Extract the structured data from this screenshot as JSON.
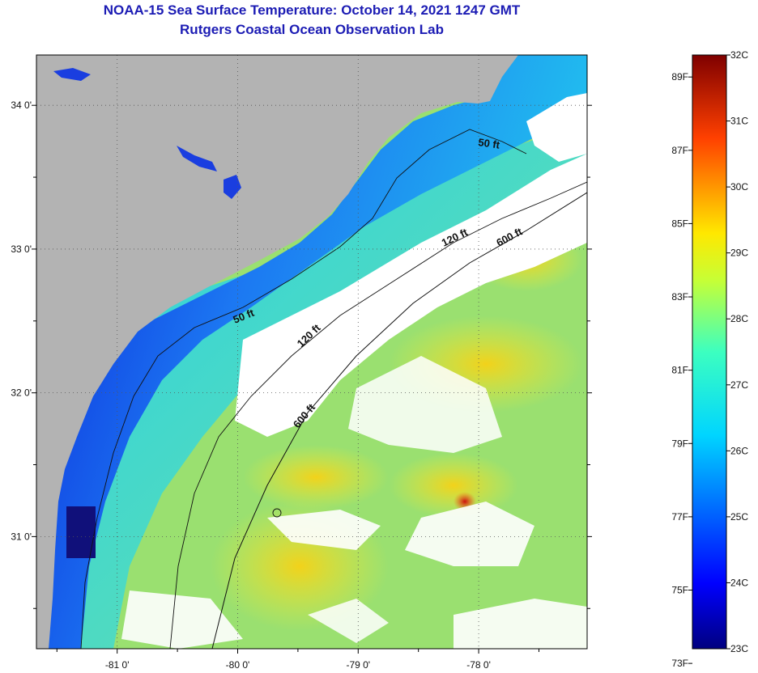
{
  "header": {
    "title": "NOAA-15 Sea Surface Temperature:  October 14, 2021 1247 GMT",
    "subtitle": "Rutgers Coastal Ocean Observation Lab"
  },
  "map": {
    "lon_range": [
      -81.67,
      -77.1
    ],
    "lat_range": [
      30.22,
      34.35
    ],
    "x_ticks": [
      {
        "value": -81,
        "label": "-81 0'"
      },
      {
        "value": -80,
        "label": "-80 0'"
      },
      {
        "value": -79,
        "label": "-79 0'"
      },
      {
        "value": -78,
        "label": "-78 0'"
      }
    ],
    "y_ticks": [
      {
        "value": 34,
        "label": "34 0'"
      },
      {
        "value": 33,
        "label": "33 0'"
      },
      {
        "value": 32,
        "label": "32 0'"
      },
      {
        "value": 31,
        "label": "31 0'"
      }
    ],
    "contour_labels": [
      "50 ft",
      "50 ft",
      "120 ft",
      "120 ft",
      "600 ft",
      "600 ft"
    ]
  },
  "colorbar": {
    "celsius_range": [
      23,
      32
    ],
    "fahrenheit_range": [
      73,
      89
    ],
    "celsius_labels": [
      "32C",
      "31C",
      "30C",
      "29C",
      "28C",
      "27C",
      "26C",
      "25C",
      "24C",
      "23C"
    ],
    "fahrenheit_labels": [
      "89F",
      "87F",
      "85F",
      "83F",
      "81F",
      "79F",
      "77F",
      "75F",
      "73F"
    ]
  },
  "colors": {
    "land": "#b3b3b3",
    "cloud": "#ffffff",
    "title": "#1c1cb4"
  }
}
